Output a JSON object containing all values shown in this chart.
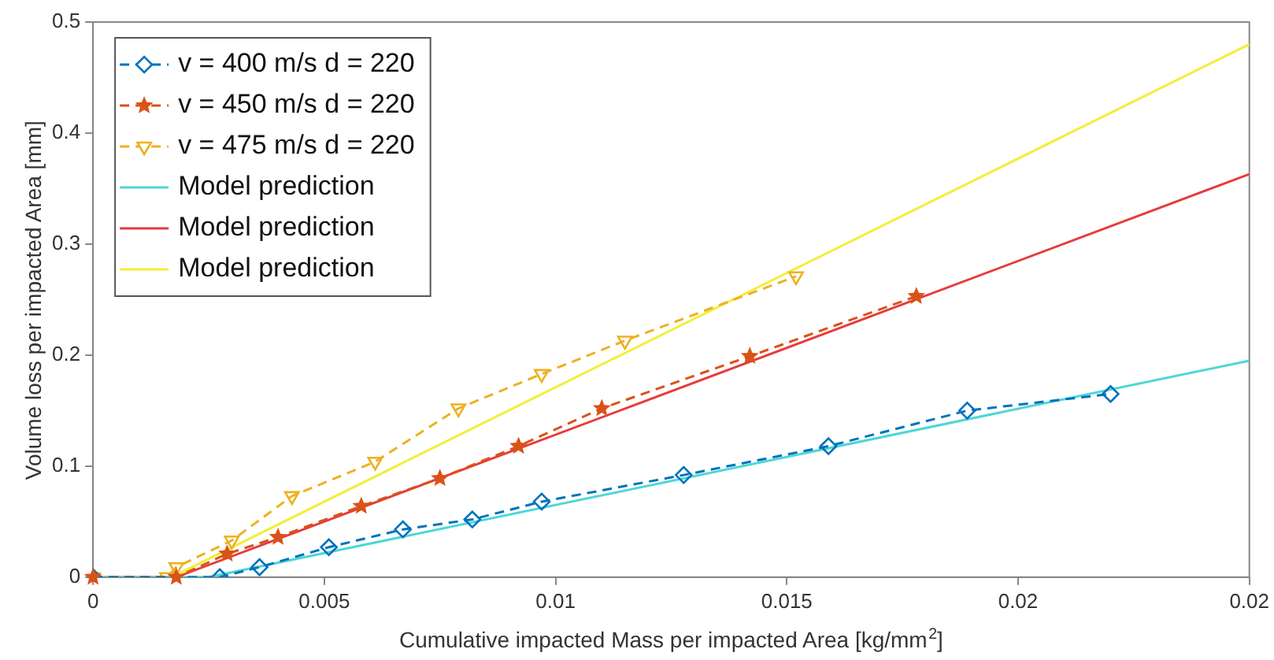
{
  "chart_data": {
    "type": "line",
    "xlabel": "Cumulative impacted Mass per impacted Area [kg/mm$^{2}$]",
    "ylabel": "Volume loss per impacted Area [mm]",
    "xlim": [
      0,
      0.025
    ],
    "xticks": [
      0,
      0.005,
      0.01,
      0.015,
      0.02,
      {
        "value": 0.025,
        "label": "0.02"
      }
    ],
    "ylim": [
      0,
      0.5
    ],
    "yticks": [
      0,
      0.1,
      0.2,
      0.3,
      0.4,
      0.5
    ],
    "grid": false,
    "legend": "top left",
    "series": [
      {
        "name": "v = 400 m/s d = 220",
        "color": "#0072bd",
        "marker": "diamond",
        "line_style": "dashed",
        "x": [
          0,
          0.00274,
          0.0036,
          0.0051,
          0.0067,
          0.0082,
          0.0097,
          0.01277,
          0.0159,
          0.0189,
          0.022
        ],
        "values": [
          0,
          0,
          0.009,
          0.027,
          0.043,
          0.052,
          0.068,
          0.092,
          0.118,
          0.15,
          0.165
        ]
      },
      {
        "name": "v = 450 m/s d = 220",
        "color": "#d95319",
        "marker": "star",
        "line_style": "dashed",
        "x": [
          0,
          0.0018,
          0.0029,
          0.004,
          0.0058,
          0.0075,
          0.0092,
          0.011,
          0.0142,
          0.0178
        ],
        "values": [
          0,
          0,
          0.021,
          0.036,
          0.064,
          0.089,
          0.118,
          0.152,
          0.199,
          0.253
        ]
      },
      {
        "name": "v = 475 m/s d = 220",
        "color": "#edb120",
        "marker": "triangle",
        "line_style": "dashed",
        "x": [
          0,
          0.0016,
          0.0018,
          0.003,
          0.0043,
          0.0061,
          0.0079,
          0.0097,
          0.0115,
          0.0152
        ],
        "values": [
          0,
          0,
          0.009,
          0.033,
          0.073,
          0.104,
          0.152,
          0.183,
          0.213,
          0.271
        ]
      },
      {
        "name": "Model prediction",
        "color": "#4fd6d6",
        "marker": "none",
        "line_style": "solid",
        "x": [
          0,
          0.0025,
          0.025
        ],
        "values": [
          0,
          0,
          0.195
        ]
      },
      {
        "name": "Model prediction",
        "color": "#e63b3b",
        "marker": "none",
        "line_style": "solid",
        "x": [
          0,
          0.0018,
          0.025
        ],
        "values": [
          0,
          0,
          0.363
        ]
      },
      {
        "name": "Model prediction",
        "color": "#f2ee3a",
        "marker": "none",
        "line_style": "solid",
        "x": [
          0,
          0.0017,
          0.025
        ],
        "values": [
          0,
          0,
          0.48
        ]
      }
    ]
  }
}
